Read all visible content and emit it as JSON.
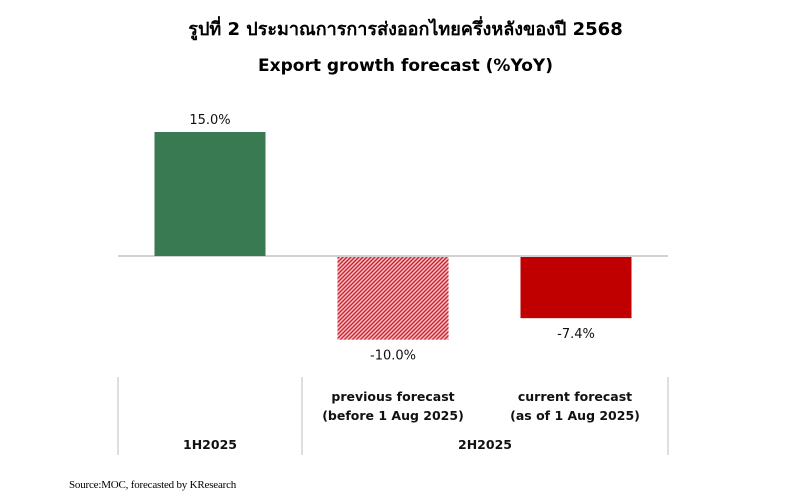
{
  "header": {
    "figure_title": "รูปที่ 2 ประมาณการการส่งออกไทยครึ่งหลังของปี 2568"
  },
  "chart_data": {
    "type": "bar",
    "title": "Export growth forecast (%YoY)",
    "categories": [
      [
        "previous forecast",
        "(before 1 Aug 2025)"
      ],
      [
        "current forecast",
        "(as of 1 Aug 2025)"
      ]
    ],
    "bars": [
      {
        "value": 15.0,
        "label": "15.0%",
        "color": "#3a7a52",
        "pattern": "solid"
      },
      {
        "value": -10.0,
        "label": "-10.0%",
        "color": "#d02030",
        "pattern": "hatched"
      },
      {
        "value": -7.4,
        "label": "-7.4%",
        "color": "#c00000",
        "pattern": "solid"
      }
    ],
    "groups": [
      "1H2025",
      "2H2025"
    ],
    "ylim": [
      -15,
      20
    ],
    "grid": false
  },
  "footer": {
    "source": "Source:MOC, forecasted by KResearch"
  }
}
